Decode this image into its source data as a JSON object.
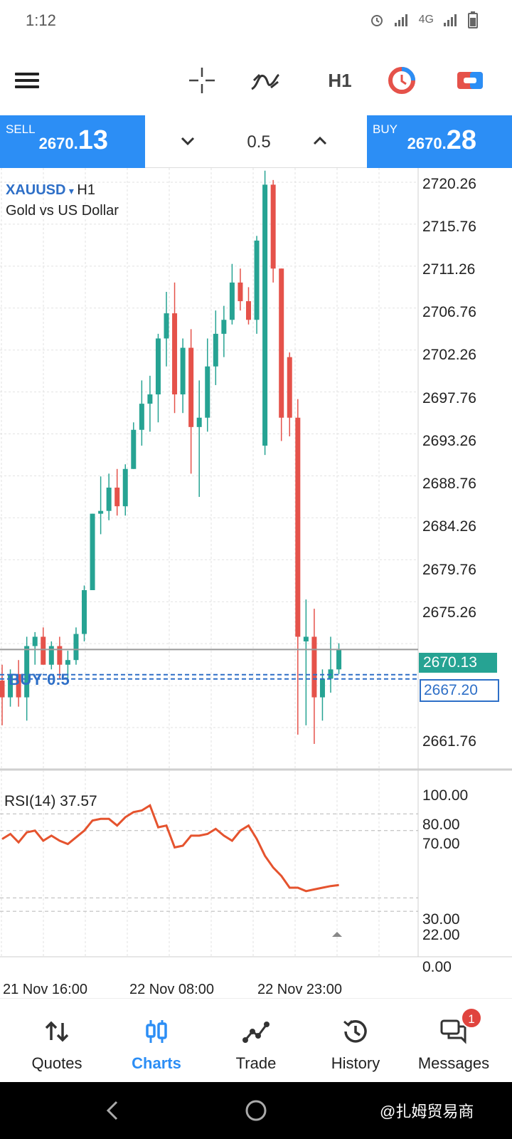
{
  "status_bar": {
    "time": "1:12",
    "network": "4G"
  },
  "toolbar": {
    "timeframe": "H1",
    "icons": [
      "menu-icon",
      "crosshair-icon",
      "indicators-icon",
      "timeframe-button",
      "objects-icon",
      "trade-icon"
    ]
  },
  "trade_panel": {
    "sell_label": "SELL",
    "sell_price_small": "2670.",
    "sell_price_big": "13",
    "buy_label": "BUY",
    "buy_price_small": "2670.",
    "buy_price_big": "28",
    "lot": "0.5"
  },
  "chart": {
    "symbol": "XAUUSD",
    "symbol_arrow": "▾",
    "timeframe": "H1",
    "description": "Gold vs US Dollar",
    "price_labels": [
      "2720.26",
      "2715.76",
      "2711.26",
      "2706.76",
      "2702.26",
      "2697.76",
      "2693.26",
      "2688.76",
      "2684.26",
      "2679.76",
      "2675.26",
      "2661.76"
    ],
    "current_price": "2670.13",
    "position_price": "2667.20",
    "position_label": "BUY 0.5",
    "colors": {
      "bull": "#26a393",
      "bear": "#e5524a",
      "position": "#2e6fc7"
    }
  },
  "chart_data": {
    "type": "candlestick",
    "symbol": "XAUUSD",
    "timeframe": "H1",
    "candles": [
      {
        "o": 2666.8,
        "h": 2668.5,
        "l": 2662.0,
        "c": 2665.0
      },
      {
        "o": 2665.0,
        "h": 2668.0,
        "l": 2664.0,
        "c": 2667.5
      },
      {
        "o": 2667.5,
        "h": 2669.0,
        "l": 2664.0,
        "c": 2665.0
      },
      {
        "o": 2665.0,
        "h": 2671.5,
        "l": 2662.5,
        "c": 2670.5
      },
      {
        "o": 2670.5,
        "h": 2672.0,
        "l": 2668.5,
        "c": 2671.5
      },
      {
        "o": 2671.5,
        "h": 2672.5,
        "l": 2668.5,
        "c": 2668.5
      },
      {
        "o": 2668.5,
        "h": 2671.0,
        "l": 2668.0,
        "c": 2670.5
      },
      {
        "o": 2670.5,
        "h": 2671.5,
        "l": 2667.0,
        "c": 2668.5
      },
      {
        "o": 2668.5,
        "h": 2670.0,
        "l": 2667.0,
        "c": 2669.0
      },
      {
        "o": 2669.0,
        "h": 2672.5,
        "l": 2668.5,
        "c": 2671.8
      },
      {
        "o": 2671.8,
        "h": 2677.0,
        "l": 2671.0,
        "c": 2676.5
      },
      {
        "o": 2676.5,
        "h": 2684.7,
        "l": 2676.5,
        "c": 2684.7
      },
      {
        "o": 2684.7,
        "h": 2688.7,
        "l": 2682.5,
        "c": 2685.0
      },
      {
        "o": 2685.0,
        "h": 2689.0,
        "l": 2684.0,
        "c": 2687.5
      },
      {
        "o": 2687.5,
        "h": 2689.5,
        "l": 2684.5,
        "c": 2685.5
      },
      {
        "o": 2685.5,
        "h": 2690.0,
        "l": 2684.5,
        "c": 2689.5
      },
      {
        "o": 2689.5,
        "h": 2694.5,
        "l": 2689.5,
        "c": 2693.7
      },
      {
        "o": 2693.7,
        "h": 2699.0,
        "l": 2692.0,
        "c": 2696.5
      },
      {
        "o": 2696.5,
        "h": 2699.5,
        "l": 2693.5,
        "c": 2697.5
      },
      {
        "o": 2697.5,
        "h": 2704.0,
        "l": 2694.5,
        "c": 2703.5
      },
      {
        "o": 2703.5,
        "h": 2708.5,
        "l": 2700.5,
        "c": 2706.2
      },
      {
        "o": 2706.2,
        "h": 2709.5,
        "l": 2695.5,
        "c": 2697.5
      },
      {
        "o": 2697.5,
        "h": 2703.5,
        "l": 2695.5,
        "c": 2702.5
      },
      {
        "o": 2702.5,
        "h": 2704.5,
        "l": 2689.0,
        "c": 2694.0
      },
      {
        "o": 2694.0,
        "h": 2699.0,
        "l": 2686.5,
        "c": 2695.0
      },
      {
        "o": 2695.0,
        "h": 2703.5,
        "l": 2693.5,
        "c": 2700.5
      },
      {
        "o": 2700.5,
        "h": 2706.5,
        "l": 2698.5,
        "c": 2704.0
      },
      {
        "o": 2704.0,
        "h": 2707.0,
        "l": 2701.5,
        "c": 2705.5
      },
      {
        "o": 2705.5,
        "h": 2711.5,
        "l": 2705.0,
        "c": 2709.5
      },
      {
        "o": 2709.5,
        "h": 2711.0,
        "l": 2706.5,
        "c": 2707.5
      },
      {
        "o": 2707.5,
        "h": 2709.0,
        "l": 2705.0,
        "c": 2705.5
      },
      {
        "o": 2705.5,
        "h": 2714.5,
        "l": 2704.0,
        "c": 2714.0
      },
      {
        "o": 2692.0,
        "h": 2721.5,
        "l": 2691.0,
        "c": 2720.0
      },
      {
        "o": 2720.0,
        "h": 2720.5,
        "l": 2709.5,
        "c": 2711.0
      },
      {
        "o": 2711.0,
        "h": 2711.0,
        "l": 2692.5,
        "c": 2695.0
      },
      {
        "o": 2701.5,
        "h": 2702.0,
        "l": 2693.0,
        "c": 2695.0
      },
      {
        "o": 2695.0,
        "h": 2697.0,
        "l": 2661.0,
        "c": 2671.5
      },
      {
        "o": 2671.0,
        "h": 2675.5,
        "l": 2662.0,
        "c": 2671.5
      },
      {
        "o": 2671.5,
        "h": 2674.5,
        "l": 2660.0,
        "c": 2665.0
      },
      {
        "o": 2665.0,
        "h": 2668.0,
        "l": 2662.5,
        "c": 2667.0
      },
      {
        "o": 2667.0,
        "h": 2671.5,
        "l": 2665.5,
        "c": 2668.0
      },
      {
        "o": 2668.0,
        "h": 2670.8,
        "l": 2667.5,
        "c": 2670.13
      }
    ],
    "ylim": [
      2659.8,
      2722.5
    ],
    "current_price": 2670.13,
    "position": {
      "side": "BUY",
      "volume": 0.5,
      "price": 2667.2
    },
    "rsi": {
      "label": "RSI(14)",
      "period": 14,
      "current": 37.57,
      "levels": [
        30,
        70
      ],
      "ylim": [
        0,
        100
      ],
      "values": [
        65,
        68,
        63,
        69,
        70,
        64,
        67,
        64,
        62,
        66,
        70,
        76,
        77,
        77,
        73,
        78,
        81,
        82,
        85,
        72,
        73,
        60,
        61,
        67,
        67,
        68,
        71,
        67,
        64,
        70,
        73,
        65,
        55,
        48,
        43,
        36,
        36,
        34,
        35,
        36,
        37,
        37.57
      ]
    },
    "x_tick_labels": [
      "21 Nov 16:00",
      "22 Nov 08:00",
      "22 Nov 23:00"
    ]
  },
  "rsi": {
    "label": "RSI(14) 37.57",
    "levels": [
      "100.00",
      "80.00",
      "70.00",
      "30.00",
      "22.00",
      "0.00"
    ]
  },
  "time_axis": [
    "21 Nov 16:00",
    "22 Nov 08:00",
    "22 Nov 23:00"
  ],
  "bottom_nav": {
    "quotes": "Quotes",
    "charts": "Charts",
    "trade": "Trade",
    "history": "History",
    "messages": "Messages",
    "messages_badge": "1",
    "active": "charts"
  },
  "watermark": "@扎姆贸易商"
}
